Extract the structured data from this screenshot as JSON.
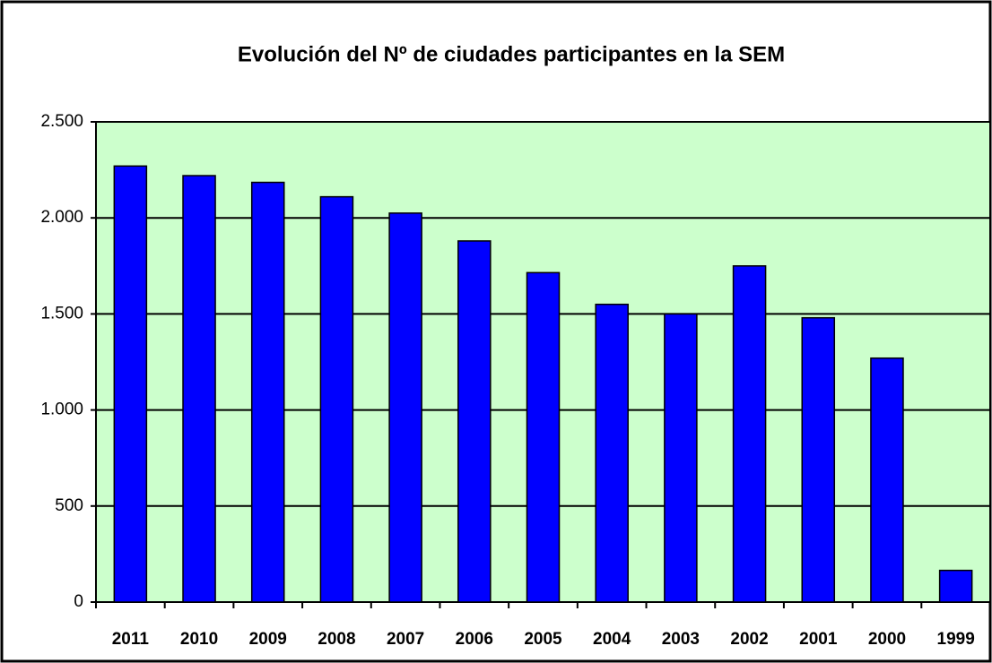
{
  "chart_data": {
    "type": "bar",
    "title": "Evolución del Nº de ciudades participantes en la SEM",
    "categories": [
      "2011",
      "2010",
      "2009",
      "2008",
      "2007",
      "2006",
      "2005",
      "2004",
      "2003",
      "2002",
      "2001",
      "2000",
      "1999"
    ],
    "values": [
      2270,
      2220,
      2185,
      2110,
      2025,
      1880,
      1715,
      1550,
      1500,
      1750,
      1480,
      1270,
      165
    ],
    "color": "#0000ff",
    "ylim": [
      0,
      2500
    ],
    "yticks": [
      0,
      500,
      {
        "value": 1000,
        "label": "1.000"
      },
      {
        "value": 1500,
        "label": "1.500"
      },
      {
        "value": 2000,
        "label": "2.000"
      },
      {
        "value": 2500,
        "label": "2.500"
      }
    ],
    "grid": true
  }
}
